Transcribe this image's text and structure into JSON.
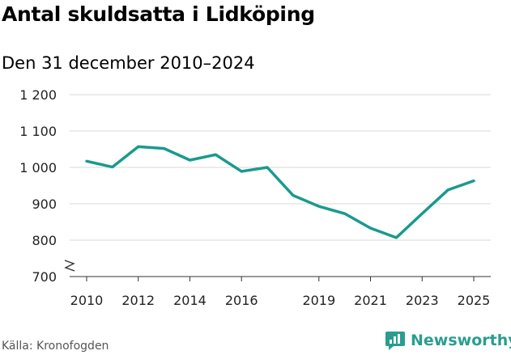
{
  "title": "Antal skuldsatta i Lidköping",
  "subtitle": "Den 31 december 2010–2024",
  "source": "Källa: Kronofogden",
  "brand": {
    "name": "Newsworthy",
    "icon": "newsworthy-logo-icon",
    "color": "#2a9d8f"
  },
  "colors": {
    "line": "#1a9a8e",
    "grid": "#d9d9d9",
    "axis": "#333333"
  },
  "chart_data": {
    "type": "line",
    "title": "Antal skuldsatta i Lidköping",
    "subtitle": "Den 31 december 2010–2024",
    "xlabel": "",
    "ylabel": "",
    "x": [
      2010,
      2011,
      2012,
      2013,
      2014,
      2015,
      2016,
      2017,
      2018,
      2019,
      2020,
      2021,
      2022,
      2023,
      2024,
      2025
    ],
    "series": [
      {
        "name": "Antal skuldsatta",
        "values": [
          1017,
          1001,
          1057,
          1052,
          1020,
          1035,
          989,
          1000,
          923,
          893,
          873,
          833,
          807,
          873,
          938,
          963
        ]
      }
    ],
    "xticks": [
      2010,
      2012,
      2014,
      2016,
      2019,
      2021,
      2023,
      2025
    ],
    "xtick_labels": [
      "2010",
      "2012",
      "2014",
      "2016",
      "2019",
      "2021",
      "2023",
      "2025"
    ],
    "yticks": [
      700,
      800,
      900,
      1000,
      1100,
      1200
    ],
    "ytick_labels": [
      "700",
      "800",
      "900",
      "1 000",
      "1 100",
      "1 200"
    ],
    "ylim": [
      700,
      1200
    ],
    "xlim": [
      2010,
      2025
    ],
    "grid": true,
    "axis_break": true
  }
}
